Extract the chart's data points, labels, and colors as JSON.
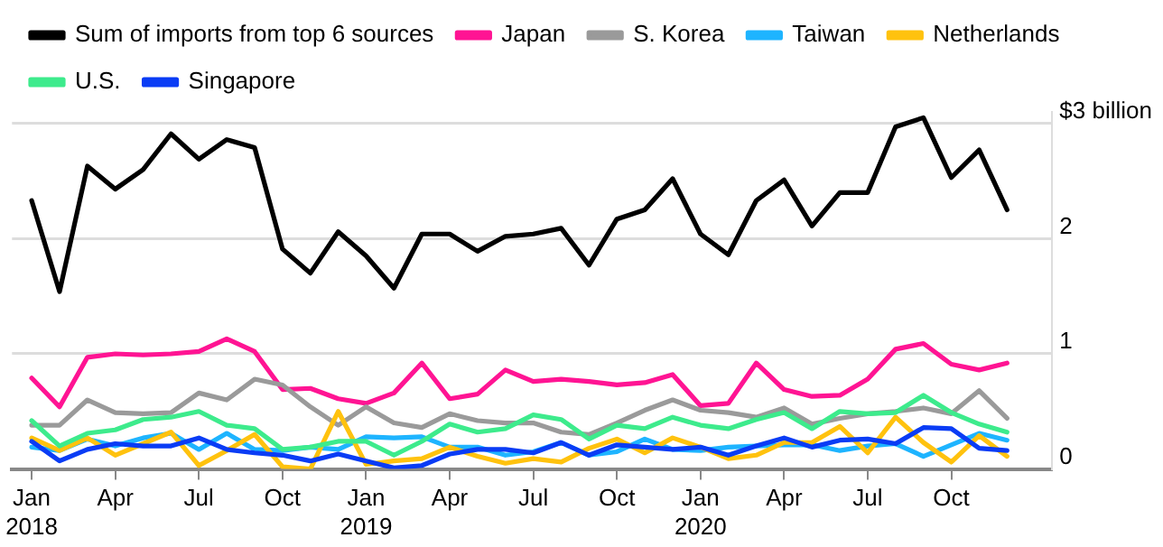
{
  "chart_data": {
    "type": "line",
    "x": [
      "2018-01",
      "2018-02",
      "2018-03",
      "2018-04",
      "2018-05",
      "2018-06",
      "2018-07",
      "2018-08",
      "2018-09",
      "2018-10",
      "2018-11",
      "2018-12",
      "2019-01",
      "2019-02",
      "2019-03",
      "2019-04",
      "2019-05",
      "2019-06",
      "2019-07",
      "2019-08",
      "2019-09",
      "2019-10",
      "2019-11",
      "2019-12",
      "2020-01",
      "2020-02",
      "2020-03",
      "2020-04",
      "2020-05",
      "2020-06",
      "2020-07",
      "2020-08",
      "2020-09",
      "2020-10",
      "2020-11",
      "2020-12"
    ],
    "series": [
      {
        "name": "Sum of imports from top 6 sources",
        "color": "#000000",
        "values": [
          2.33,
          1.54,
          2.63,
          2.43,
          2.6,
          2.91,
          2.69,
          2.86,
          2.79,
          1.91,
          1.7,
          2.06,
          1.85,
          1.57,
          2.04,
          2.04,
          1.89,
          2.02,
          2.04,
          2.09,
          1.77,
          2.17,
          2.25,
          2.52,
          2.04,
          1.86,
          2.33,
          2.51,
          2.11,
          2.4,
          2.4,
          2.97,
          3.05,
          2.53,
          2.77,
          2.25
        ]
      },
      {
        "name": "Japan",
        "color": "#ff1493",
        "values": [
          0.79,
          0.54,
          0.97,
          1.0,
          0.99,
          1.0,
          1.02,
          1.13,
          1.02,
          0.69,
          0.7,
          0.61,
          0.57,
          0.66,
          0.92,
          0.61,
          0.65,
          0.86,
          0.76,
          0.78,
          0.76,
          0.73,
          0.75,
          0.82,
          0.55,
          0.57,
          0.92,
          0.69,
          0.63,
          0.64,
          0.78,
          1.04,
          1.09,
          0.91,
          0.86,
          0.92
        ]
      },
      {
        "name": "S. Korea",
        "color": "#9a9a9a",
        "values": [
          0.38,
          0.38,
          0.6,
          0.49,
          0.48,
          0.49,
          0.66,
          0.6,
          0.78,
          0.73,
          0.54,
          0.38,
          0.54,
          0.4,
          0.36,
          0.48,
          0.42,
          0.4,
          0.4,
          0.32,
          0.3,
          0.4,
          0.51,
          0.6,
          0.51,
          0.49,
          0.45,
          0.53,
          0.39,
          0.44,
          0.48,
          0.5,
          0.53,
          0.48,
          0.68,
          0.44
        ]
      },
      {
        "name": "Taiwan",
        "color": "#1eb4ff",
        "values": [
          0.19,
          0.16,
          0.26,
          0.2,
          0.27,
          0.31,
          0.17,
          0.31,
          0.17,
          0.16,
          0.19,
          0.17,
          0.28,
          0.27,
          0.28,
          0.19,
          0.19,
          0.12,
          0.15,
          0.23,
          0.12,
          0.15,
          0.26,
          0.17,
          0.16,
          0.19,
          0.2,
          0.21,
          0.21,
          0.16,
          0.2,
          0.22,
          0.11,
          0.21,
          0.31,
          0.25
        ]
      },
      {
        "name": "Netherlands",
        "color": "#ffc20e",
        "values": [
          0.27,
          0.16,
          0.27,
          0.12,
          0.22,
          0.32,
          0.03,
          0.16,
          0.3,
          0.02,
          0.0,
          0.5,
          0.04,
          0.07,
          0.09,
          0.19,
          0.11,
          0.05,
          0.09,
          0.06,
          0.18,
          0.26,
          0.14,
          0.27,
          0.19,
          0.09,
          0.12,
          0.23,
          0.23,
          0.37,
          0.14,
          0.45,
          0.23,
          0.06,
          0.29,
          0.11
        ]
      },
      {
        "name": "U.S.",
        "color": "#3deb8c",
        "values": [
          0.42,
          0.2,
          0.31,
          0.34,
          0.43,
          0.45,
          0.5,
          0.38,
          0.35,
          0.17,
          0.19,
          0.24,
          0.24,
          0.12,
          0.24,
          0.39,
          0.32,
          0.35,
          0.47,
          0.43,
          0.26,
          0.38,
          0.35,
          0.45,
          0.38,
          0.35,
          0.43,
          0.49,
          0.35,
          0.5,
          0.48,
          0.49,
          0.64,
          0.49,
          0.39,
          0.32
        ]
      },
      {
        "name": "Singapore",
        "color": "#0a3cf5",
        "values": [
          0.24,
          0.07,
          0.17,
          0.22,
          0.2,
          0.2,
          0.27,
          0.17,
          0.14,
          0.12,
          0.07,
          0.13,
          0.07,
          0.01,
          0.03,
          0.13,
          0.17,
          0.17,
          0.14,
          0.23,
          0.12,
          0.21,
          0.19,
          0.17,
          0.19,
          0.12,
          0.2,
          0.27,
          0.19,
          0.25,
          0.26,
          0.22,
          0.36,
          0.35,
          0.18,
          0.16
        ]
      }
    ],
    "xlim": [
      "2017-12-10",
      "2021-01-20"
    ],
    "xticks": [
      {
        "value": "2018-01",
        "label": "Jan 2018"
      },
      {
        "value": "2018-04",
        "label": "Apr"
      },
      {
        "value": "2018-07",
        "label": "Jul"
      },
      {
        "value": "2018-10",
        "label": "Oct"
      },
      {
        "value": "2019-01",
        "label": "Jan 2019"
      },
      {
        "value": "2019-04",
        "label": "Apr"
      },
      {
        "value": "2019-07",
        "label": "Jul"
      },
      {
        "value": "2019-10",
        "label": "Oct"
      },
      {
        "value": "2020-01",
        "label": "Jan 2020"
      },
      {
        "value": "2020-04",
        "label": "Apr"
      },
      {
        "value": "2020-07",
        "label": "Jul"
      },
      {
        "value": "2020-10",
        "label": "Oct"
      }
    ],
    "ylim": [
      0,
      3.1
    ],
    "yticks": [
      0,
      1,
      2,
      {
        "value": 3,
        "label": "$3 billion"
      }
    ],
    "grid": "y",
    "legend": "top left",
    "marker": "none",
    "line_style": "solid"
  }
}
